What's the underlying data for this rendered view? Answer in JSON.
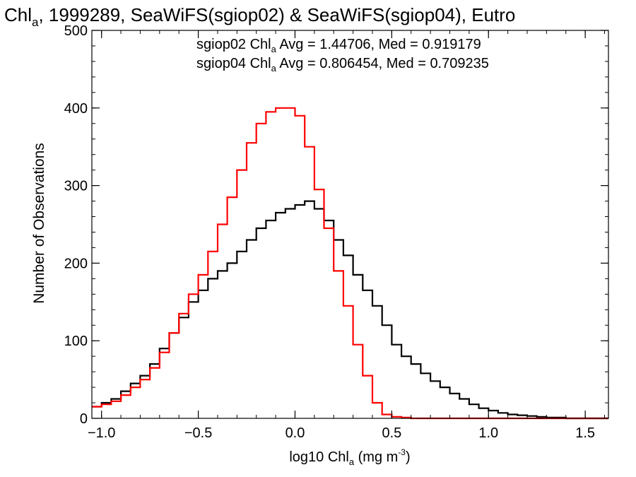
{
  "chart_data": {
    "type": "line",
    "title": {
      "prefix": "Chl",
      "subscript": "a",
      "suffix": ", 1999289, SeaWiFS(sgiop02) & SeaWiFS(sgiop04), Eutro"
    },
    "xlabel": {
      "prefix": "log10 Chl",
      "subscript": "a",
      "middle": " (mg m",
      "superscript": "-3",
      "suffix": ")"
    },
    "ylabel": "Number of Observations",
    "xlim": [
      -1.05,
      1.62
    ],
    "ylim": [
      0,
      500
    ],
    "xticks": [
      -1.0,
      -0.5,
      0.0,
      0.5,
      1.0,
      1.5
    ],
    "xtick_labels": [
      "−1.0",
      "−0.5",
      "0.0",
      "0.5",
      "1.0",
      "1.5"
    ],
    "yticks": [
      0,
      100,
      200,
      300,
      400,
      500
    ],
    "ytick_labels": [
      "0",
      "100",
      "200",
      "300",
      "400",
      "500"
    ],
    "grid": false,
    "colors": {
      "sgiop02": "#000000",
      "sgiop04": "#ff0000"
    },
    "annotations": [
      {
        "id": "sgiop02",
        "color": "#000000",
        "prefix": "sgiop02 Chl",
        "subscript": "a",
        "suffix": " Avg = 1.44706, Med = 0.919179"
      },
      {
        "id": "sgiop04",
        "color": "#ff0000",
        "prefix": "sgiop04 Chl",
        "subscript": "a",
        "suffix": " Avg = 0.806454, Med = 0.709235"
      }
    ],
    "x": [
      -1.05,
      -1.0,
      -0.95,
      -0.9,
      -0.85,
      -0.8,
      -0.75,
      -0.7,
      -0.65,
      -0.6,
      -0.55,
      -0.5,
      -0.45,
      -0.4,
      -0.35,
      -0.3,
      -0.25,
      -0.2,
      -0.15,
      -0.1,
      -0.05,
      0.0,
      0.05,
      0.1,
      0.15,
      0.2,
      0.25,
      0.3,
      0.35,
      0.4,
      0.45,
      0.5,
      0.55,
      0.6,
      0.65,
      0.7,
      0.75,
      0.8,
      0.85,
      0.9,
      0.95,
      1.0,
      1.05,
      1.1,
      1.15,
      1.2,
      1.25,
      1.3,
      1.35,
      1.4,
      1.45,
      1.5,
      1.55,
      1.6
    ],
    "series": [
      {
        "name": "sgiop02",
        "color": "#000000",
        "values": [
          15,
          20,
          25,
          35,
          45,
          55,
          70,
          90,
          110,
          130,
          150,
          165,
          180,
          190,
          200,
          215,
          230,
          245,
          255,
          265,
          270,
          275,
          280,
          270,
          255,
          230,
          210,
          185,
          165,
          145,
          120,
          95,
          80,
          70,
          58,
          48,
          40,
          32,
          25,
          18,
          13,
          10,
          7,
          5,
          4,
          3,
          2,
          1,
          1,
          0,
          0,
          0,
          0,
          0
        ]
      },
      {
        "name": "sgiop04",
        "color": "#ff0000",
        "values": [
          15,
          18,
          22,
          30,
          40,
          50,
          65,
          85,
          110,
          135,
          160,
          185,
          215,
          250,
          285,
          320,
          355,
          380,
          395,
          400,
          400,
          390,
          350,
          295,
          245,
          190,
          145,
          95,
          55,
          20,
          5,
          2,
          1,
          0,
          0,
          0,
          0,
          0,
          0,
          0,
          0,
          0,
          0,
          0,
          0,
          0,
          0,
          0,
          0,
          0,
          0,
          0,
          0,
          0
        ]
      }
    ]
  }
}
